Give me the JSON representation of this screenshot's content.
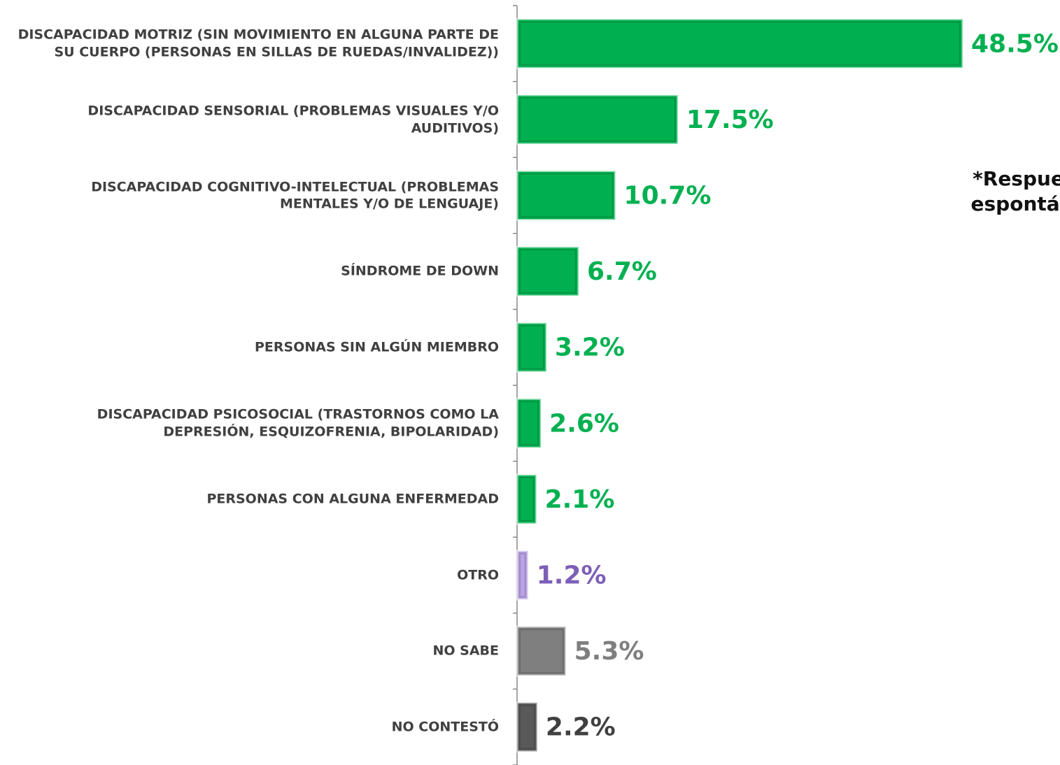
{
  "chart_data": {
    "type": "barh",
    "categories": [
      "DISCAPACIDAD MOTRIZ (SIN MOVIMIENTO EN ALGUNA PARTE DE SU CUERPO (PERSONAS EN SILLAS DE RUEDAS/INVALIDEZ))",
      "DISCAPACIDAD SENSORIAL (PROBLEMAS VISUALES Y/O AUDITIVOS)",
      "DISCAPACIDAD COGNITIVO-INTELECTUAL (PROBLEMAS MENTALES Y/O DE LENGUAJE)",
      "SÍNDROME DE DOWN",
      "PERSONAS SIN ALGÚN MIEMBRO",
      "DISCAPACIDAD PSICOSOCIAL (TRASTORNOS COMO LA DEPRESIÓN, ESQUIZOFRENIA, BIPOLARIDAD)",
      "PERSONAS CON ALGUNA ENFERMEDAD",
      "OTRO",
      "NO SABE",
      "NO CONTESTÓ"
    ],
    "values": [
      48.5,
      17.5,
      10.7,
      6.7,
      3.2,
      2.6,
      2.1,
      1.2,
      5.3,
      2.2
    ],
    "value_labels": [
      "48.5%",
      "17.5%",
      "10.7%",
      "6.7%",
      "3.2%",
      "2.6%",
      "2.1%",
      "1.2%",
      "5.3%",
      "2.2%"
    ],
    "colors": [
      "#00b050",
      "#00b050",
      "#00b050",
      "#00b050",
      "#00b050",
      "#00b050",
      "#00b050",
      "#b9a3e3",
      "#7f7f7f",
      "#595959"
    ],
    "label_colors": [
      "#00b050",
      "#00b050",
      "#00b050",
      "#00b050",
      "#00b050",
      "#00b050",
      "#00b050",
      "#7d5fb8",
      "#7f7f7f",
      "#404040"
    ],
    "annotation": [
      "*Respuesta",
      "espontánea"
    ]
  }
}
